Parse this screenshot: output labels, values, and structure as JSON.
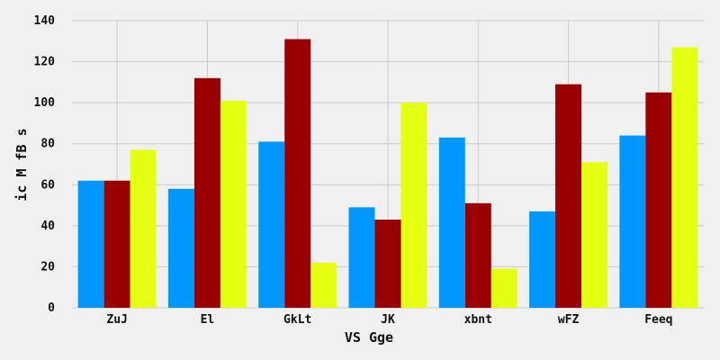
{
  "chart_data": {
    "type": "bar",
    "title": "",
    "xlabel": "VS Gge",
    "ylabel": "ic M  fB  s",
    "categories": [
      "ZuJ",
      "El",
      "GkLt",
      "JK",
      "xbnt",
      "wFZ",
      "Feeq"
    ],
    "series": [
      {
        "color": "#0098ff",
        "values": [
          62,
          58,
          81,
          49,
          83,
          47,
          84
        ]
      },
      {
        "color": "#990000",
        "values": [
          62,
          112,
          131,
          43,
          51,
          109,
          105
        ]
      },
      {
        "color": "#e5ff13",
        "values": [
          77,
          101,
          22,
          100,
          19,
          71,
          127
        ]
      }
    ],
    "ylim": [
      0,
      140
    ],
    "yticks": [
      0,
      20,
      40,
      60,
      80,
      100,
      120,
      140
    ],
    "grid": true,
    "legend": "none",
    "background": "#f0f0f0"
  }
}
